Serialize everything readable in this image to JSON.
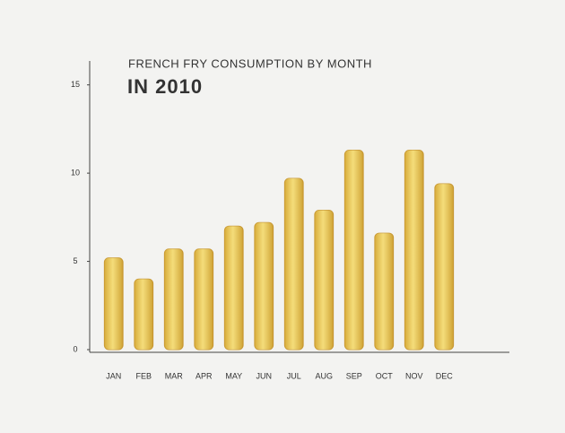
{
  "chart_data": {
    "type": "bar",
    "title": "FRENCH FRY CONSUMPTION BY MONTH",
    "subtitle": "IN 2010",
    "categories": [
      "JAN",
      "FEB",
      "MAR",
      "APR",
      "MAY",
      "JUN",
      "JUL",
      "AUG",
      "SEP",
      "OCT",
      "NOV",
      "DEC"
    ],
    "values": [
      5.2,
      4.0,
      5.7,
      5.7,
      7.0,
      7.2,
      9.7,
      7.9,
      11.3,
      6.6,
      11.3,
      9.4
    ],
    "color": "#e9c64e",
    "ylim": [
      0,
      16
    ],
    "yticks": [
      0,
      5,
      10,
      15
    ],
    "grid": false
  }
}
